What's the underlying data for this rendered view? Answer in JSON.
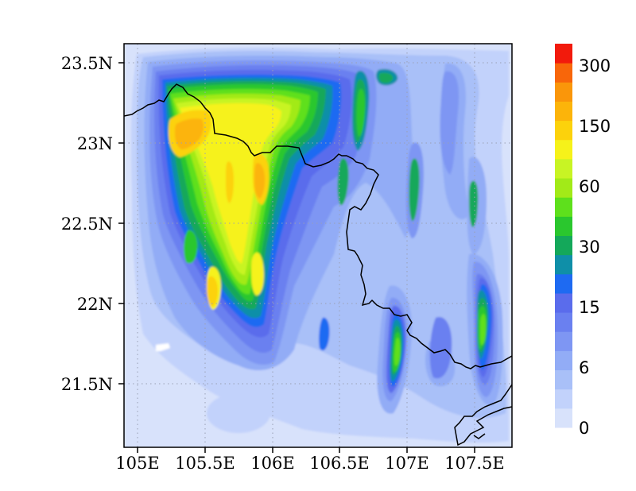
{
  "map": {
    "lat_ticks": [
      "23.5N",
      "23N",
      "22.5N",
      "22N",
      "21.5N"
    ],
    "lon_ticks": [
      "105E",
      "105.5E",
      "106E",
      "106.5E",
      "107E",
      "107.5E"
    ],
    "extent": {
      "lon_min": 104.95,
      "lon_max": 107.8,
      "lat_min": 21.1,
      "lat_max": 23.6
    }
  },
  "colorbar": {
    "labels": [
      "0",
      "6",
      "15",
      "30",
      "60",
      "150",
      "300"
    ],
    "colors": [
      "#d8e2fb",
      "#c2d2fb",
      "#a9c0f8",
      "#92acf6",
      "#7e96f3",
      "#6a80f0",
      "#5a6cec",
      "#1e6af2",
      "#0f8fa8",
      "#14a85a",
      "#2ac72e",
      "#5ee01c",
      "#a2ea18",
      "#c8f424",
      "#f6f21a",
      "#fcd20c",
      "#fcb40a",
      "#fa960a",
      "#f8660a",
      "#f21a0c"
    ]
  }
}
